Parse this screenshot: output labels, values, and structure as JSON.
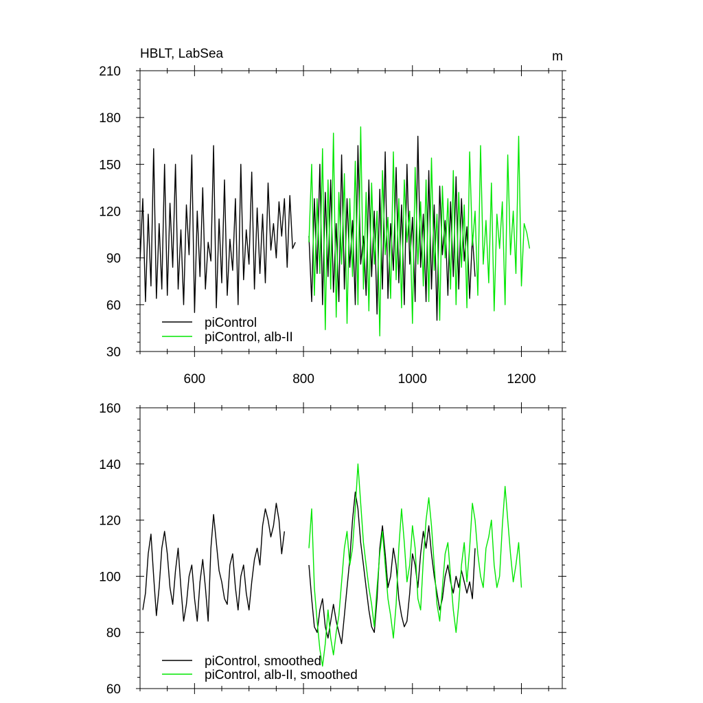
{
  "colors": {
    "pi_control": "#000000",
    "alb_ii": "#00e600",
    "axis": "#000000"
  },
  "chart_data": [
    {
      "type": "line",
      "title": "HBLT, LabSea",
      "units": "m",
      "xlim": [
        500,
        1275
      ],
      "ylim": [
        30,
        210
      ],
      "xticks": [
        600,
        800,
        1000,
        1200
      ],
      "yticks": [
        30,
        60,
        90,
        120,
        150,
        180,
        210
      ],
      "legend_position": "bottom-left",
      "series": [
        {
          "name": "piControl",
          "color": "#000000",
          "x_start": 500,
          "x_step": 5,
          "values": [
            88,
            128,
            62,
            118,
            72,
            160,
            64,
            112,
            70,
            150,
            66,
            125,
            84,
            150,
            70,
            108,
            60,
            124,
            92,
            156,
            55,
            120,
            78,
            135,
            70,
            100,
            88,
            162,
            58,
            115,
            74,
            140,
            66,
            102,
            82,
            128,
            60,
            150,
            76,
            108,
            86,
            145,
            70,
            122,
            80,
            118,
            74,
            138,
            95,
            112,
            90,
            126,
            104,
            128,
            84,
            130,
            96,
            100
          ]
        },
        {
          "name": "piControl",
          "color": "#000000",
          "x_start": 810,
          "x_step": 5,
          "values": [
            104,
            62,
            128,
            80,
            150,
            60,
            132,
            78,
            140,
            68,
            112,
            62,
            156,
            70,
            128,
            84,
            114,
            60,
            162,
            86,
            104,
            66,
            140,
            78,
            120,
            54,
            134,
            70,
            158,
            64,
            112,
            82,
            148,
            74,
            124,
            60,
            150,
            86,
            116,
            62,
            168,
            84,
            118,
            62,
            146,
            70,
            124,
            50,
            136,
            92,
            114,
            66,
            126,
            78,
            142,
            70,
            128,
            88,
            110,
            64,
            104,
            78
          ]
        },
        {
          "name": "piControl, alb-II",
          "color": "#00e600",
          "x_start": 810,
          "x_step": 5,
          "values": [
            100,
            150,
            66,
            128,
            80,
            160,
            44,
            140,
            70,
            170,
            52,
            132,
            86,
            144,
            48,
            128,
            78,
            152,
            60,
            174,
            70,
            132,
            56,
            138,
            86,
            120,
            40,
            146,
            92,
            116,
            64,
            158,
            76,
            128,
            58,
            140,
            100,
            120,
            48,
            148,
            86,
            126,
            72,
            140,
            62,
            154,
            82,
            118,
            50,
            136,
            90,
            128,
            70,
            146,
            60,
            132,
            84,
            124,
            58,
            158,
            98,
            120,
            66,
            162,
            86,
            114,
            74,
            138,
            56,
            118,
            96,
            126,
            60,
            156,
            92,
            120,
            80,
            168,
            72,
            112,
            106,
            96
          ]
        }
      ]
    },
    {
      "type": "line",
      "xlim": [
        500,
        1275
      ],
      "ylim": [
        60,
        160
      ],
      "yticks": [
        60,
        80,
        100,
        120,
        140,
        160
      ],
      "legend_position": "bottom-left",
      "series": [
        {
          "name": "piControl, smoothed",
          "color": "#000000",
          "x_start": 505,
          "x_step": 5,
          "values": [
            88,
            94,
            108,
            115,
            100,
            86,
            96,
            110,
            116,
            108,
            96,
            90,
            102,
            110,
            96,
            84,
            90,
            100,
            104,
            92,
            84,
            98,
            106,
            96,
            84,
            110,
            122,
            112,
            102,
            98,
            92,
            90,
            104,
            108,
            96,
            88,
            100,
            104,
            94,
            88,
            98,
            106,
            110,
            104,
            118,
            124,
            120,
            114,
            118,
            126,
            120,
            108,
            116
          ]
        },
        {
          "name": "piControl, smoothed",
          "color": "#000000",
          "x_start": 810,
          "x_step": 5,
          "values": [
            104,
            92,
            82,
            80,
            88,
            92,
            82,
            78,
            84,
            90,
            84,
            80,
            76,
            86,
            96,
            106,
            120,
            130,
            124,
            112,
            104,
            96,
            88,
            82,
            80,
            92,
            110,
            118,
            108,
            96,
            100,
            110,
            104,
            92,
            86,
            82,
            84,
            94,
            108,
            104,
            96,
            108,
            116,
            110,
            118,
            108,
            100,
            94,
            88,
            92,
            100,
            104,
            98,
            94,
            100,
            96,
            102,
            98,
            94,
            98,
            92,
            110
          ]
        },
        {
          "name": "piControl, alb-II, smoothed",
          "color": "#00e600",
          "x_start": 810,
          "x_step": 5,
          "values": [
            110,
            124,
            96,
            84,
            74,
            68,
            76,
            88,
            78,
            72,
            80,
            86,
            98,
            110,
            116,
            104,
            110,
            124,
            140,
            126,
            112,
            104,
            96,
            90,
            82,
            96,
            108,
            116,
            104,
            92,
            86,
            78,
            90,
            110,
            124,
            112,
            98,
            104,
            118,
            110,
            92,
            88,
            106,
            120,
            128,
            118,
            104,
            90,
            84,
            96,
            108,
            112,
            100,
            88,
            80,
            90,
            104,
            112,
            98,
            110,
            126,
            120,
            108,
            100,
            96,
            110,
            114,
            120,
            104,
            96,
            100,
            118,
            132,
            120,
            108,
            98,
            104,
            112,
            96
          ]
        }
      ]
    }
  ]
}
